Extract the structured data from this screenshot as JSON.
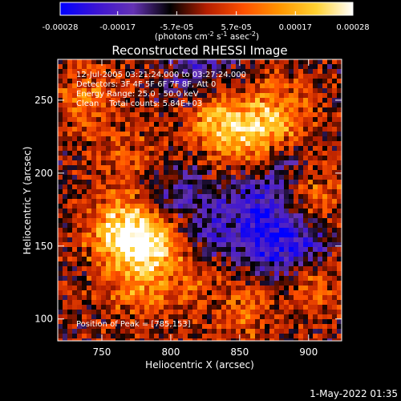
{
  "chart_data": {
    "type": "heatmap",
    "title": "Reconstructed RHESSI Image",
    "xlabel": "Heliocentric X (arcsec)",
    "ylabel": "Heliocentric Y (arcsec)",
    "x_range": [
      718,
      924
    ],
    "y_range": [
      85,
      278
    ],
    "x_ticks": [
      "750",
      "800",
      "850",
      "900"
    ],
    "x_tick_values": [
      750,
      800,
      850,
      900
    ],
    "y_ticks": [
      "100",
      "150",
      "200",
      "250"
    ],
    "y_tick_values": [
      100,
      150,
      200,
      250
    ],
    "colorbar": {
      "ticks": [
        "-0.00028",
        "-0.00017",
        "-5.7e-05",
        "5.7e-05",
        "0.00017",
        "0.00028"
      ],
      "tick_values": [
        -0.00028,
        -0.00017,
        -5.7e-05,
        5.7e-05,
        0.00017,
        0.00028
      ],
      "range": [
        -0.00028,
        0.00028
      ],
      "units_parts": [
        "(photons cm",
        "-2",
        " s",
        "-1",
        " asec",
        "-2",
        ")"
      ],
      "colors": [
        "#0000ff",
        "#3c14d2",
        "#6432b4",
        "#000000",
        "#b41e00",
        "#ff5000",
        "#ff9600",
        "#ffd232",
        "#ffffff"
      ]
    },
    "annotations": [
      "12-Jul-2005 03:21:24.000 to 03:27:24.000",
      "Detectors: 3F 4F 5F 6F 7F 8F, Att 0",
      "Energy Range: 25.0 - 50.0 keV",
      "Clean    Total counts: 5.84E+03"
    ],
    "peak_label": "Position of Peak = [785,153]",
    "peak": [
      785,
      153
    ],
    "sources": [
      {
        "x": 785,
        "y": 153,
        "amp": 1.0
      },
      {
        "x": 760,
        "y": 160,
        "amp": 0.75
      },
      {
        "x": 775,
        "y": 120,
        "amp": 0.45
      },
      {
        "x": 835,
        "y": 235,
        "amp": 0.65
      },
      {
        "x": 860,
        "y": 225,
        "amp": 0.55
      },
      {
        "x": 880,
        "y": 240,
        "amp": 0.5
      },
      {
        "x": 740,
        "y": 250,
        "amp": 0.45
      },
      {
        "x": 770,
        "y": 210,
        "amp": 0.3
      },
      {
        "x": 905,
        "y": 180,
        "amp": 0.5
      },
      {
        "x": 905,
        "y": 125,
        "amp": 0.4
      },
      {
        "x": 855,
        "y": 105,
        "amp": 0.3
      },
      {
        "x": 820,
        "y": 125,
        "amp": 0.25
      },
      {
        "x": 875,
        "y": 150,
        "amp": -0.6
      },
      {
        "x": 860,
        "y": 175,
        "amp": -0.45
      },
      {
        "x": 900,
        "y": 155,
        "amp": -0.55
      },
      {
        "x": 805,
        "y": 185,
        "amp": -0.4
      },
      {
        "x": 820,
        "y": 270,
        "amp": -0.4
      },
      {
        "x": 830,
        "y": 160,
        "amp": -0.35
      },
      {
        "x": 880,
        "y": 200,
        "amp": -0.35
      }
    ]
  },
  "footer": {
    "date": "1-May-2022 01:35"
  }
}
